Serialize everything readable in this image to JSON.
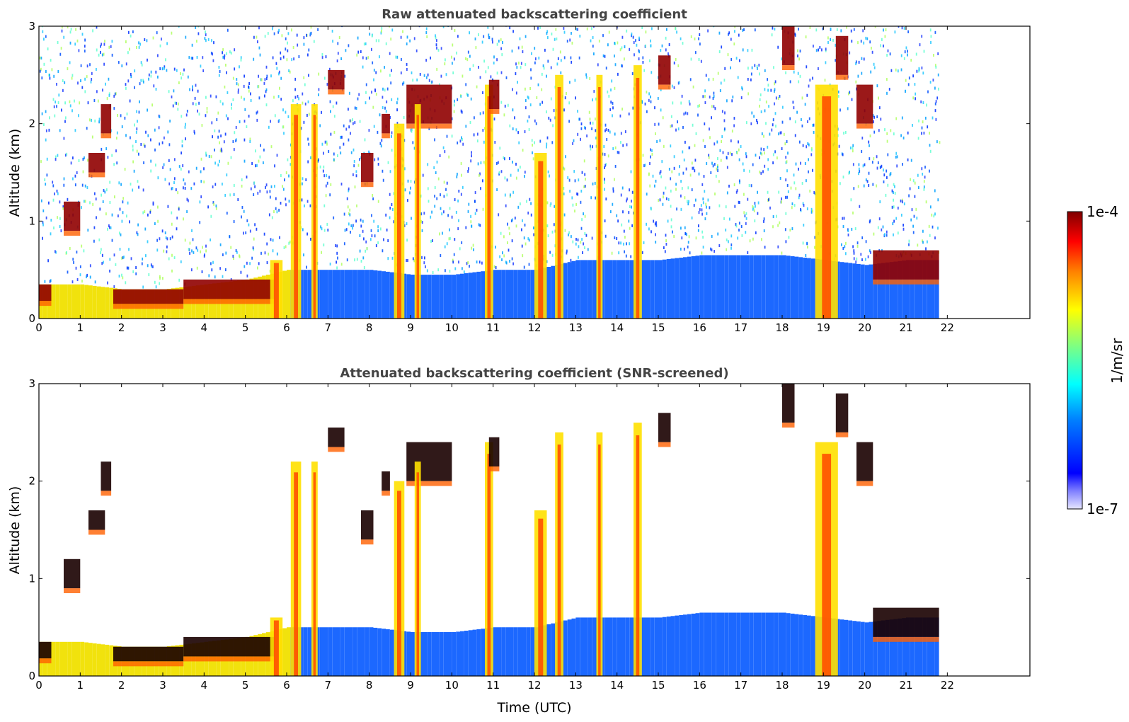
{
  "figure": {
    "colorbar": {
      "label": "1/m/sr",
      "max_label": "1e-4",
      "min_label": "1e-7",
      "scale": "log",
      "range": [
        1e-07,
        0.0001
      ],
      "colormap": "jet"
    }
  },
  "chart_data": [
    {
      "type": "heatmap",
      "title": "Raw attenuated backscattering coefficient",
      "xlabel": "",
      "ylabel": "Altitude (km)",
      "xlim": [
        0,
        24
      ],
      "ylim": [
        0,
        3
      ],
      "xticks": [
        "0",
        "1",
        "2",
        "3",
        "4",
        "5",
        "6",
        "7",
        "8",
        "9",
        "10",
        "11",
        "12",
        "13",
        "14",
        "15",
        "16",
        "17",
        "18",
        "19",
        "20",
        "21",
        "22"
      ],
      "yticks": [
        "0",
        "1",
        "2",
        "3"
      ],
      "data_end_time": 21.8,
      "boundary_layer_top_km": [
        [
          0,
          0.35
        ],
        [
          1,
          0.35
        ],
        [
          2,
          0.3
        ],
        [
          3,
          0.3
        ],
        [
          4,
          0.35
        ],
        [
          5,
          0.4
        ],
        [
          6,
          0.5
        ],
        [
          7,
          0.5
        ],
        [
          8,
          0.5
        ],
        [
          9,
          0.45
        ],
        [
          10,
          0.45
        ],
        [
          11,
          0.5
        ],
        [
          12,
          0.5
        ],
        [
          13,
          0.6
        ],
        [
          14,
          0.6
        ],
        [
          15,
          0.6
        ],
        [
          16,
          0.65
        ],
        [
          17,
          0.65
        ],
        [
          18,
          0.65
        ],
        [
          19,
          0.6
        ],
        [
          20,
          0.55
        ],
        [
          21,
          0.6
        ],
        [
          21.8,
          0.6
        ]
      ],
      "clouds": [
        {
          "t": 0.0,
          "w": 0.3,
          "b": 0.18,
          "top": 0.35
        },
        {
          "t": 0.6,
          "w": 0.4,
          "b": 0.9,
          "top": 1.2
        },
        {
          "t": 1.2,
          "w": 0.4,
          "b": 1.5,
          "top": 1.7
        },
        {
          "t": 1.5,
          "w": 0.25,
          "b": 1.9,
          "top": 2.2
        },
        {
          "t": 1.8,
          "w": 1.7,
          "b": 0.15,
          "top": 0.3
        },
        {
          "t": 3.5,
          "w": 2.2,
          "b": 0.2,
          "top": 0.4
        },
        {
          "t": 5.6,
          "w": 0.3,
          "b": 0.0,
          "top": 0.6
        },
        {
          "t": 6.1,
          "w": 0.25,
          "b": 0.0,
          "top": 2.2
        },
        {
          "t": 6.6,
          "w": 0.15,
          "b": 0.0,
          "top": 2.2
        },
        {
          "t": 7.0,
          "w": 0.4,
          "b": 2.35,
          "top": 2.55
        },
        {
          "t": 7.8,
          "w": 0.3,
          "b": 1.4,
          "top": 1.7
        },
        {
          "t": 8.3,
          "w": 0.2,
          "b": 1.9,
          "top": 2.1
        },
        {
          "t": 8.6,
          "w": 0.25,
          "b": 0.0,
          "top": 2.0
        },
        {
          "t": 8.9,
          "w": 1.1,
          "b": 2.0,
          "top": 2.4
        },
        {
          "t": 9.1,
          "w": 0.15,
          "b": 0.0,
          "top": 2.2
        },
        {
          "t": 10.8,
          "w": 0.2,
          "b": 0.0,
          "top": 2.4
        },
        {
          "t": 10.9,
          "w": 0.25,
          "b": 2.15,
          "top": 2.45
        },
        {
          "t": 12.0,
          "w": 0.3,
          "b": 0.0,
          "top": 1.7
        },
        {
          "t": 12.5,
          "w": 0.2,
          "b": 0.0,
          "top": 2.5
        },
        {
          "t": 13.5,
          "w": 0.15,
          "b": 0.0,
          "top": 2.5
        },
        {
          "t": 14.4,
          "w": 0.2,
          "b": 0.0,
          "top": 2.6
        },
        {
          "t": 15.0,
          "w": 0.3,
          "b": 2.4,
          "top": 2.7
        },
        {
          "t": 18.0,
          "w": 0.3,
          "b": 2.6,
          "top": 3.0
        },
        {
          "t": 18.8,
          "w": 0.55,
          "b": 0.0,
          "top": 2.4
        },
        {
          "t": 19.3,
          "w": 0.3,
          "b": 2.5,
          "top": 2.9
        },
        {
          "t": 19.8,
          "w": 0.4,
          "b": 2.0,
          "top": 2.4
        },
        {
          "t": 20.2,
          "w": 1.6,
          "b": 0.4,
          "top": 0.7
        }
      ]
    },
    {
      "type": "heatmap",
      "title": "Attenuated backscattering coefficient (SNR-screened)",
      "xlabel": "Time (UTC)",
      "ylabel": "Altitude (km)",
      "xlim": [
        0,
        24
      ],
      "ylim": [
        0,
        3
      ],
      "xticks": [
        "0",
        "1",
        "2",
        "3",
        "4",
        "5",
        "6",
        "7",
        "8",
        "9",
        "10",
        "11",
        "12",
        "13",
        "14",
        "15",
        "16",
        "17",
        "18",
        "19",
        "20",
        "21",
        "22"
      ],
      "yticks": [
        "0",
        "1",
        "2",
        "3"
      ],
      "data_end_time": 21.8,
      "screened": true
    }
  ]
}
